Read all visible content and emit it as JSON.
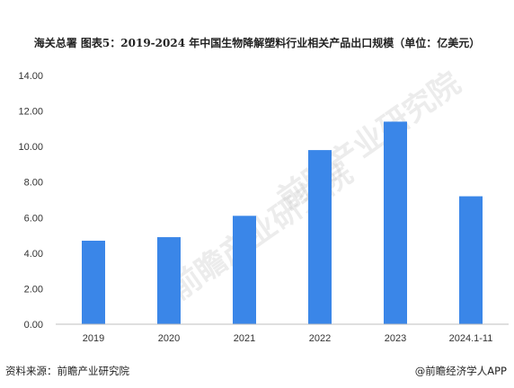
{
  "title": "海关总署  图表5：2019-2024 年中国生物降解塑料行业相关产品出口规模（单位：亿美元）",
  "footer": {
    "source": "资料来源：前瞻产业研究院",
    "brand": "@前瞻经济学人APP"
  },
  "watermark_logo": "前瞻产业研究院",
  "chart_data": {
    "type": "bar",
    "categories": [
      "2019",
      "2020",
      "2021",
      "2022",
      "2023",
      "2024.1-11"
    ],
    "values": [
      4.7,
      4.9,
      6.1,
      9.8,
      11.4,
      7.2
    ],
    "ylim": [
      0,
      14
    ],
    "yticks": [
      "0.00",
      "2.00",
      "4.00",
      "6.00",
      "8.00",
      "10.00",
      "12.00",
      "14.00"
    ],
    "grid": false,
    "bar_color": "#3a86e8"
  }
}
